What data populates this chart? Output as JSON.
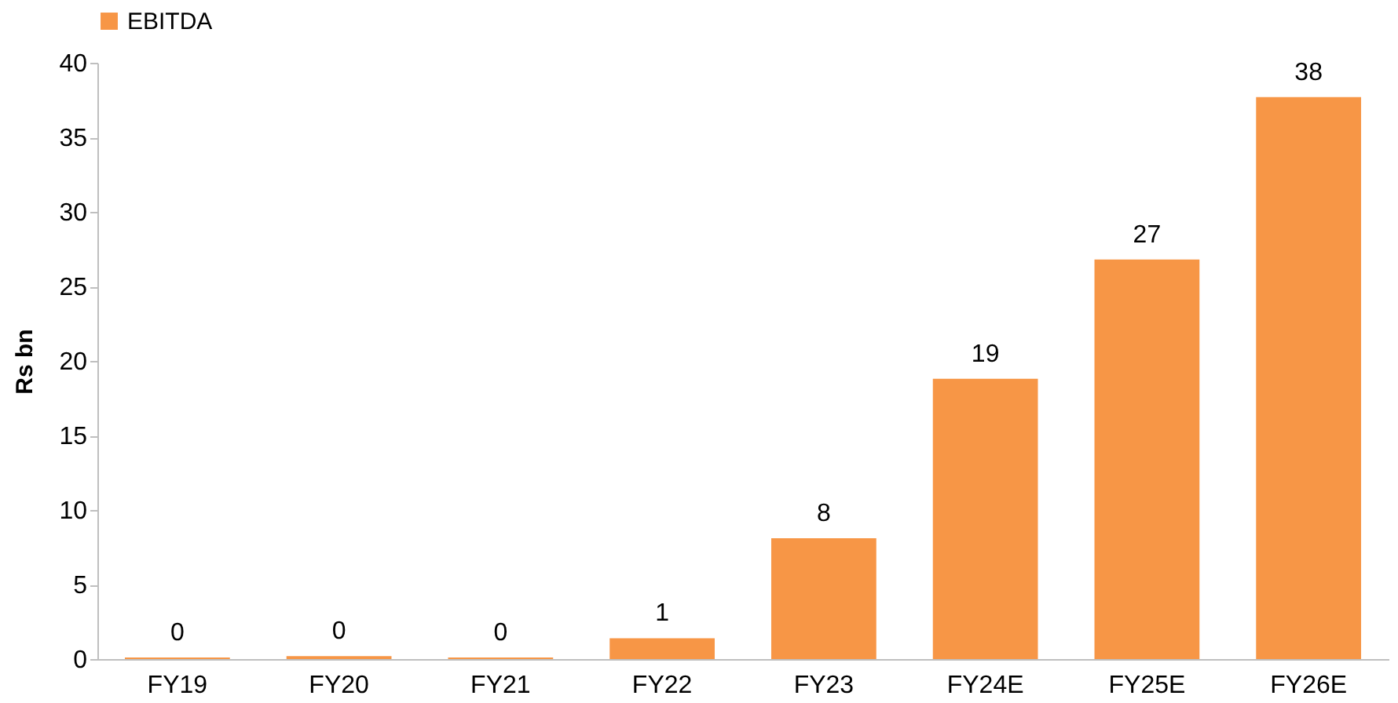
{
  "chart_data": {
    "type": "bar",
    "ylabel": "Rs bn",
    "categories": [
      "FY19",
      "FY20",
      "FY21",
      "FY22",
      "FY23",
      "FY24E",
      "FY25E",
      "FY26E"
    ],
    "series": [
      {
        "name": "EBITDA",
        "color": "#f79646",
        "values": [
          0.1,
          0.2,
          0.1,
          1.4,
          8.1,
          18.8,
          26.8,
          37.7
        ],
        "value_labels": [
          "0",
          "0",
          "0",
          "1",
          "8",
          "19",
          "27",
          "38"
        ]
      }
    ],
    "ylim": [
      0,
      40
    ],
    "yticks": [
      0,
      5,
      10,
      15,
      20,
      25,
      30,
      35,
      40
    ],
    "grid": false,
    "legend": "top"
  }
}
